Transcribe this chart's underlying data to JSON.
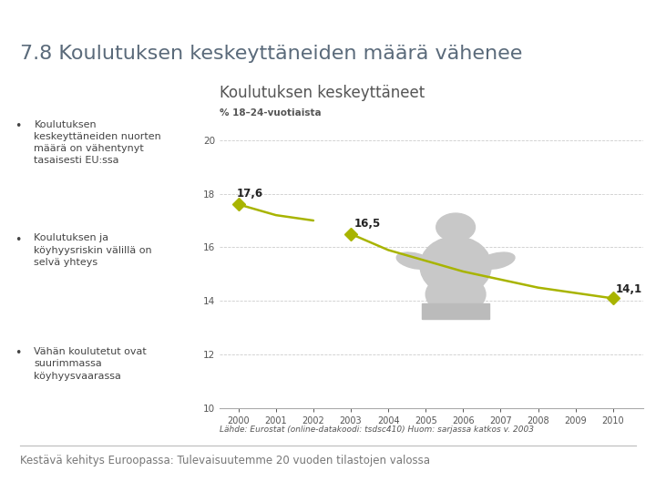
{
  "title": "7.8 Koulutuksen keskeyttäneiden määrä vähenee",
  "title_color": "#5a6a7a",
  "title_fontsize": 16,
  "chart_title": "Koulutuksen keskeyttäneet",
  "chart_title_fontsize": 12,
  "chart_title_color": "#555555",
  "ylabel": "% 18–24-vuotiaista",
  "ylabel_fontsize": 7.5,
  "ylabel_color": "#555555",
  "bullet_points": [
    "Koulutuksen\nkeskeyttäneiden nuorten\nmäärä on vähentynyt\ntasaisesti EU:ssa",
    "Koulutuksen ja\nköyhyysriskin välillä on\nselvä yhteys",
    "Vähän koulutetut ovat\nsuurimmassa\nköyhyysvaarassa"
  ],
  "bullet_fontsize": 8,
  "bullet_color": "#444444",
  "years_seg1": [
    2000,
    2001,
    2002
  ],
  "values_seg1": [
    17.6,
    17.2,
    17.0
  ],
  "years_seg2": [
    2003,
    2004,
    2005,
    2006,
    2007,
    2008,
    2009,
    2010
  ],
  "values_seg2": [
    16.5,
    15.9,
    15.5,
    15.1,
    14.8,
    14.5,
    14.3,
    14.1
  ],
  "line_color": "#a8b400",
  "marker_years": [
    2000,
    2003,
    2010
  ],
  "marker_values": [
    17.6,
    16.5,
    14.1
  ],
  "marker_labels": [
    "17,6",
    "16,5",
    "14,1"
  ],
  "marker_color": "#a8b400",
  "marker_size": 7,
  "xlim": [
    1999.5,
    2010.8
  ],
  "ylim": [
    10,
    21
  ],
  "yticks": [
    10,
    12,
    14,
    16,
    18,
    20
  ],
  "xticks": [
    2000,
    2001,
    2002,
    2003,
    2004,
    2005,
    2006,
    2007,
    2008,
    2009,
    2010
  ],
  "grid_color": "#cccccc",
  "bg_color": "#ffffff",
  "source_text": "Lähde: Eurostat (online-datakoodi: tsdsc410) Huom: sarjassa katkos v. 2003",
  "source_fontsize": 6.5,
  "footer_text": "Kestävä kehitys Euroopassa: Tulevaisuutemme 20 vuoden tilastojen valossa",
  "footer_fontsize": 8.5,
  "footer_color": "#777777"
}
